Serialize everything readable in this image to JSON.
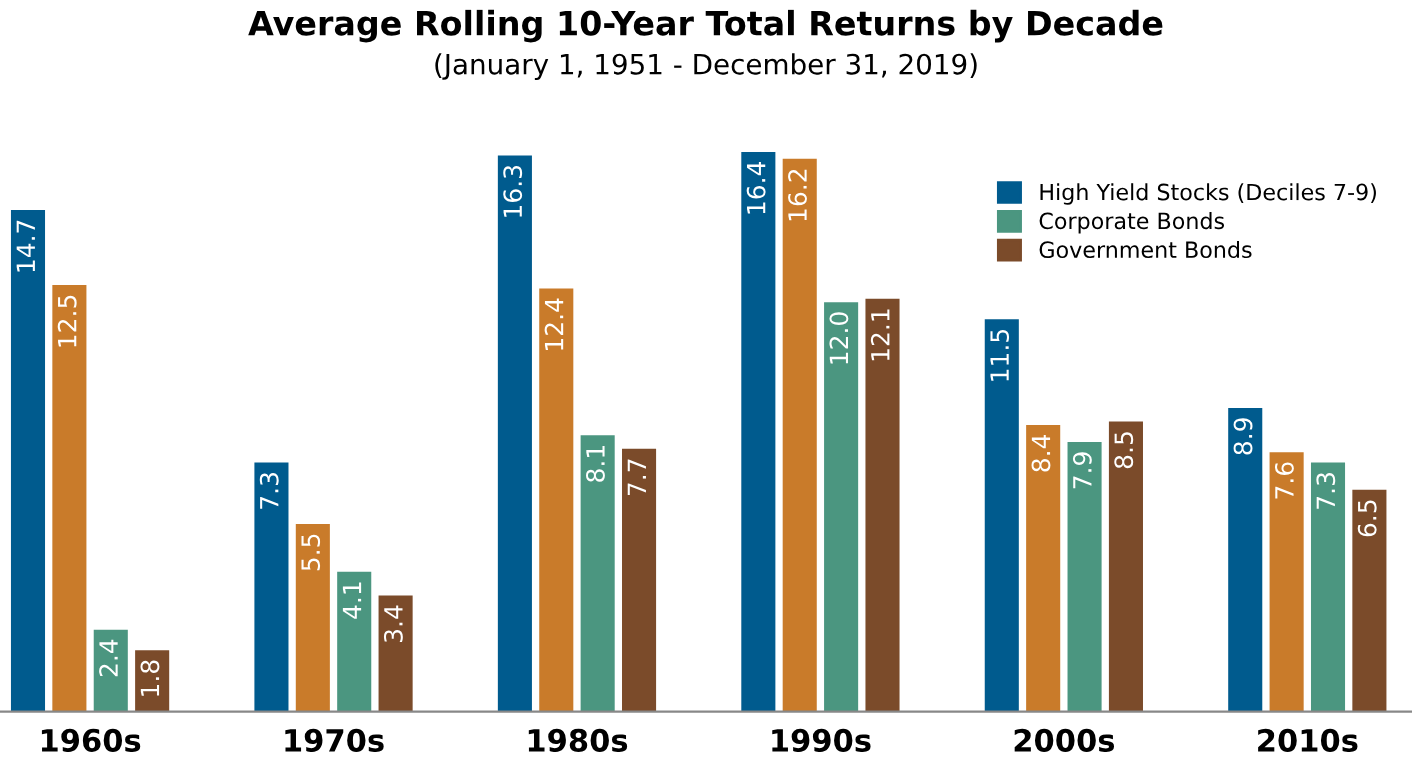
{
  "chart_data": {
    "type": "bar",
    "title": "Average Rolling 10-Year Total Returns by Decade",
    "subtitle": "(January 1, 1951 - December 31, 2019)",
    "categories": [
      "1960s",
      "1970s",
      "1980s",
      "1990s",
      "2000s",
      "2010s"
    ],
    "series": [
      {
        "name": "High Yield Stocks (Deciles 7-9)",
        "color": "#005b8e",
        "values": [
          14.7,
          7.3,
          16.3,
          16.4,
          11.5,
          8.9
        ],
        "value_labels": [
          "14.7",
          "7.3",
          "16.3",
          "16.4",
          "11.5",
          "8.9"
        ]
      },
      {
        "color": "#c97b2a",
        "values": [
          12.5,
          5.5,
          12.4,
          16.2,
          8.4,
          7.6
        ],
        "value_labels": [
          "12.5",
          "5.5",
          "12.4",
          "16.2",
          "8.4",
          "7.6"
        ]
      },
      {
        "name": "Corporate Bonds",
        "color": "#4b9680",
        "values": [
          2.4,
          4.1,
          8.1,
          12.0,
          7.9,
          7.3
        ],
        "value_labels": [
          "2.4",
          "4.1",
          "8.1",
          "12.0",
          "7.9",
          "7.3"
        ]
      },
      {
        "name": "Government Bonds",
        "color": "#7b4b2a",
        "values": [
          1.8,
          3.4,
          7.7,
          12.1,
          8.5,
          6.5
        ],
        "value_labels": [
          "1.8",
          "3.4",
          "7.7",
          "12.1",
          "8.5",
          "6.5"
        ]
      }
    ],
    "legend": "top right",
    "grid": false
  }
}
